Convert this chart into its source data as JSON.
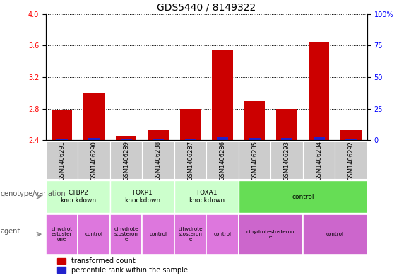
{
  "title": "GDS5440 / 8149322",
  "samples": [
    "GSM1406291",
    "GSM1406290",
    "GSM1406289",
    "GSM1406288",
    "GSM1406287",
    "GSM1406286",
    "GSM1406285",
    "GSM1406293",
    "GSM1406284",
    "GSM1406292"
  ],
  "red_values": [
    2.78,
    3.0,
    2.46,
    2.53,
    2.8,
    3.54,
    2.9,
    2.8,
    3.65,
    2.53
  ],
  "blue_values": [
    2.42,
    2.43,
    2.41,
    2.41,
    2.42,
    2.45,
    2.43,
    2.43,
    2.45,
    2.41
  ],
  "base": 2.4,
  "ylim_left": [
    2.4,
    4.0
  ],
  "ylim_right": [
    0,
    100
  ],
  "yticks_left": [
    2.4,
    2.8,
    3.2,
    3.6,
    4.0
  ],
  "yticks_right": [
    0,
    25,
    50,
    75,
    100
  ],
  "genotype_groups": [
    {
      "label": "CTBP2\nknockdown",
      "start": 0,
      "end": 2,
      "color": "#ccffcc"
    },
    {
      "label": "FOXP1\nknockdown",
      "start": 2,
      "end": 4,
      "color": "#ccffcc"
    },
    {
      "label": "FOXA1\nknockdown",
      "start": 4,
      "end": 6,
      "color": "#ccffcc"
    },
    {
      "label": "control",
      "start": 6,
      "end": 10,
      "color": "#66dd55"
    }
  ],
  "agent_groups": [
    {
      "label": "dihydrot\nestoster\none",
      "start": 0,
      "end": 1,
      "color": "#dd77dd"
    },
    {
      "label": "control",
      "start": 1,
      "end": 2,
      "color": "#dd77dd"
    },
    {
      "label": "dihydrote\nstosteron\ne",
      "start": 2,
      "end": 3,
      "color": "#dd77dd"
    },
    {
      "label": "control",
      "start": 3,
      "end": 4,
      "color": "#dd77dd"
    },
    {
      "label": "dihydrote\nstosteron\ne",
      "start": 4,
      "end": 5,
      "color": "#dd77dd"
    },
    {
      "label": "control",
      "start": 5,
      "end": 6,
      "color": "#dd77dd"
    },
    {
      "label": "dihydrotestosteron\ne",
      "start": 6,
      "end": 8,
      "color": "#cc66cc"
    },
    {
      "label": "control",
      "start": 8,
      "end": 10,
      "color": "#cc66cc"
    }
  ],
  "bar_width": 0.65,
  "blue_bar_width": 0.35,
  "red_color": "#cc0000",
  "blue_color": "#2222cc",
  "grid_color": "#000000",
  "sample_bg_color": "#cccccc",
  "background_color": "#ffffff",
  "title_fontsize": 10,
  "tick_fontsize": 7,
  "sample_fontsize": 6
}
